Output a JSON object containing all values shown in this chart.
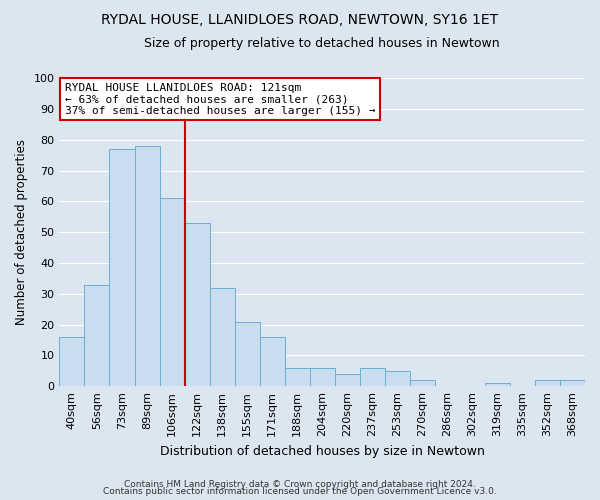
{
  "title": "RYDAL HOUSE, LLANIDLOES ROAD, NEWTOWN, SY16 1ET",
  "subtitle": "Size of property relative to detached houses in Newtown",
  "xlabel": "Distribution of detached houses by size in Newtown",
  "ylabel": "Number of detached properties",
  "bar_labels": [
    "40sqm",
    "56sqm",
    "73sqm",
    "89sqm",
    "106sqm",
    "122sqm",
    "138sqm",
    "155sqm",
    "171sqm",
    "188sqm",
    "204sqm",
    "220sqm",
    "237sqm",
    "253sqm",
    "270sqm",
    "286sqm",
    "302sqm",
    "319sqm",
    "335sqm",
    "352sqm",
    "368sqm"
  ],
  "bar_values": [
    16,
    33,
    77,
    78,
    61,
    53,
    32,
    21,
    16,
    6,
    6,
    4,
    6,
    5,
    2,
    0,
    0,
    1,
    0,
    2,
    2
  ],
  "bar_color": "#c9ddef",
  "bar_edge_color": "#6aaed6",
  "ylim": [
    0,
    100
  ],
  "vline_x_index": 5,
  "vline_color": "#cc0000",
  "annotation_title": "RYDAL HOUSE LLANIDLOES ROAD: 121sqm",
  "annotation_line1": "← 63% of detached houses are smaller (263)",
  "annotation_line2": "37% of semi-detached houses are larger (155) →",
  "annotation_box_facecolor": "#ffffff",
  "annotation_box_edgecolor": "#cc0000",
  "footer1": "Contains HM Land Registry data © Crown copyright and database right 2024.",
  "footer2": "Contains public sector information licensed under the Open Government Licence v3.0.",
  "fig_facecolor": "#dce6f0",
  "plot_facecolor": "#dce6f0",
  "grid_color": "#ffffff",
  "title_fontsize": 10,
  "subtitle_fontsize": 9,
  "ylabel_fontsize": 8.5,
  "xlabel_fontsize": 9,
  "tick_fontsize": 8,
  "footer_fontsize": 6.5,
  "annotation_fontsize": 8
}
